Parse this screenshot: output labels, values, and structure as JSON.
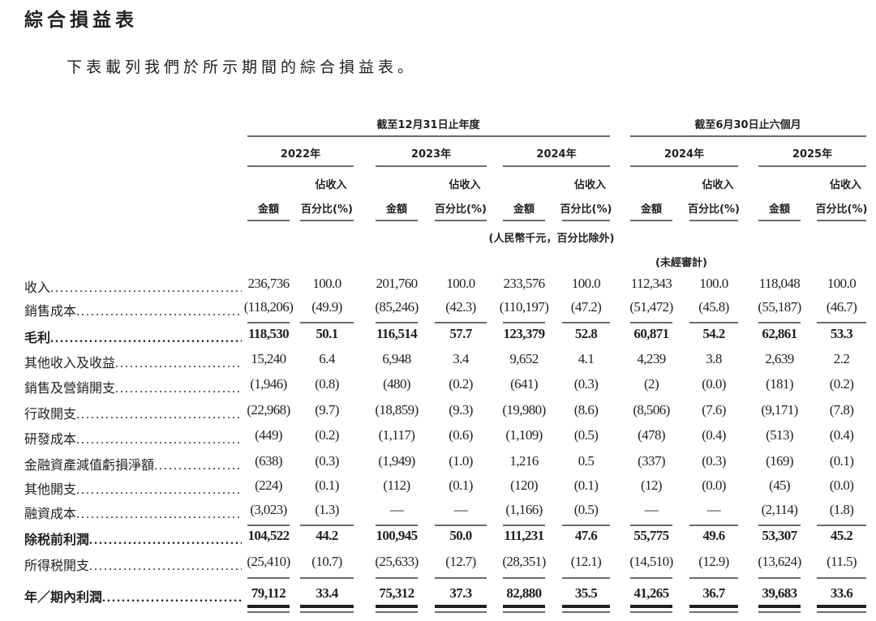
{
  "title": "綜合損益表",
  "subtitle": "下表載列我們於所示期間的綜合損益表。",
  "header": {
    "group_full_year": "截至12月31日止年度",
    "group_six_months": "截至6月30日止六個月",
    "years": [
      "2022年",
      "2023年",
      "2024年",
      "2024年",
      "2025年"
    ],
    "amount_label": "金額",
    "pct_label_line1": "佔收入",
    "pct_label_line2": "百分比(%)",
    "unit_note": "(人民幣千元，百分比除外)",
    "unaudited_note": "(未經審計)"
  },
  "rows": [
    {
      "label": "收入",
      "bold": false,
      "values": [
        "236,736",
        "100.0",
        "201,760",
        "100.0",
        "233,576",
        "100.0",
        "112,343",
        "100.0",
        "118,048",
        "100.0"
      ]
    },
    {
      "label": "銷售成本",
      "bold": false,
      "values": [
        "(118,206)",
        "(49.9)",
        "(85,246)",
        "(42.3)",
        "(110,197)",
        "(47.2)",
        "(51,472)",
        "(45.8)",
        "(55,187)",
        "(46.7)"
      ]
    },
    {
      "label": "毛利",
      "bold": true,
      "values": [
        "118,530",
        "50.1",
        "116,514",
        "57.7",
        "123,379",
        "52.8",
        "60,871",
        "54.2",
        "62,861",
        "53.3"
      ]
    },
    {
      "label": "其他收入及收益",
      "bold": false,
      "values": [
        "15,240",
        "6.4",
        "6,948",
        "3.4",
        "9,652",
        "4.1",
        "4,239",
        "3.8",
        "2,639",
        "2.2"
      ]
    },
    {
      "label": "銷售及營銷開支",
      "bold": false,
      "values": [
        "(1,946)",
        "(0.8)",
        "(480)",
        "(0.2)",
        "(641)",
        "(0.3)",
        "(2)",
        "(0.0)",
        "(181)",
        "(0.2)"
      ]
    },
    {
      "label": "行政開支",
      "bold": false,
      "values": [
        "(22,968)",
        "(9.7)",
        "(18,859)",
        "(9.3)",
        "(19,980)",
        "(8.6)",
        "(8,506)",
        "(7.6)",
        "(9,171)",
        "(7.8)"
      ]
    },
    {
      "label": "研發成本",
      "bold": false,
      "values": [
        "(449)",
        "(0.2)",
        "(1,117)",
        "(0.6)",
        "(1,109)",
        "(0.5)",
        "(478)",
        "(0.4)",
        "(513)",
        "(0.4)"
      ]
    },
    {
      "label": "金融資產減值虧損淨額",
      "bold": false,
      "values": [
        "(638)",
        "(0.3)",
        "(1,949)",
        "(1.0)",
        "1,216",
        "0.5",
        "(337)",
        "(0.3)",
        "(169)",
        "(0.1)"
      ]
    },
    {
      "label": "其他開支",
      "bold": false,
      "values": [
        "(224)",
        "(0.1)",
        "(112)",
        "(0.1)",
        "(120)",
        "(0.1)",
        "(12)",
        "(0.0)",
        "(45)",
        "(0.0)"
      ]
    },
    {
      "label": "融資成本",
      "bold": false,
      "values": [
        "(3,023)",
        "(1.3)",
        "—",
        "—",
        "(1,166)",
        "(0.5)",
        "—",
        "—",
        "(2,114)",
        "(1.8)"
      ]
    },
    {
      "label": "除税前利潤",
      "bold": true,
      "values": [
        "104,522",
        "44.2",
        "100,945",
        "50.0",
        "111,231",
        "47.6",
        "55,775",
        "49.6",
        "53,307",
        "45.2"
      ]
    },
    {
      "label": "所得税開支",
      "bold": false,
      "values": [
        "(25,410)",
        "(10.7)",
        "(25,633)",
        "(12.7)",
        "(28,351)",
        "(12.1)",
        "(14,510)",
        "(12.9)",
        "(13,624)",
        "(11.5)"
      ]
    },
    {
      "label": "年／期內利潤",
      "bold": true,
      "values": [
        "79,112",
        "33.4",
        "75,312",
        "37.3",
        "82,880",
        "35.5",
        "41,265",
        "36.7",
        "39,683",
        "33.6"
      ]
    }
  ]
}
